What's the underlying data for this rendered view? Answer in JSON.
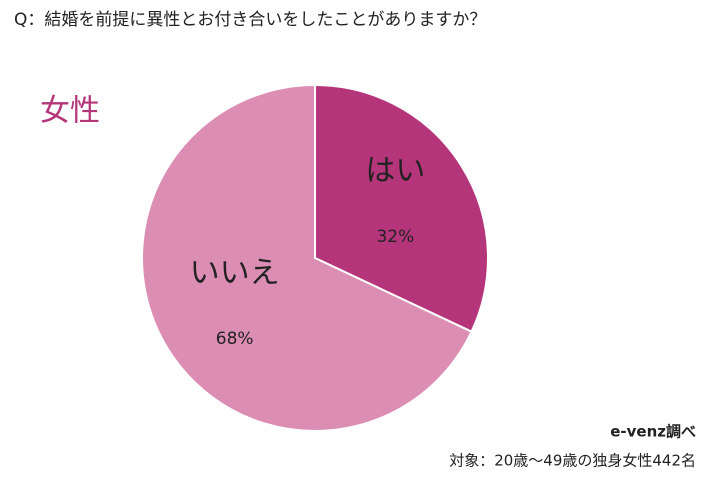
{
  "chart_data": {
    "type": "pie",
    "title": "Q：結婚を前提に異性とお付き合いをしたことがありますか？",
    "subtitle": "女性",
    "categories": [
      "はい",
      "いいえ"
    ],
    "values": [
      32,
      68
    ],
    "value_labels": [
      "32%",
      "68%"
    ],
    "colors": [
      "#b5357a",
      "#dc8db3"
    ],
    "source": "e-venz調べ",
    "note": "対象：20歳～49歳の独身女性442名"
  }
}
